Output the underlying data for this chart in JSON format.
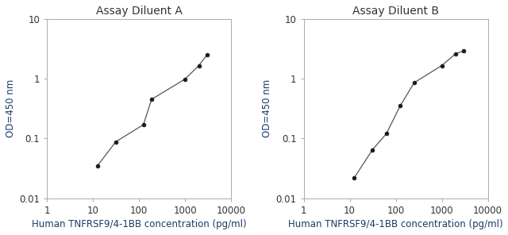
{
  "plot_A": {
    "title": "Assay Diluent A",
    "x": [
      12.5,
      31.25,
      125,
      187.5,
      1000,
      2000,
      3000
    ],
    "y": [
      0.035,
      0.088,
      0.17,
      0.45,
      0.98,
      1.65,
      2.5
    ],
    "xlabel": "Human TNFRSF9/4-1BB concentration (pg/ml)",
    "ylabel": "OD=450 nm",
    "xlim": [
      1,
      10000
    ],
    "ylim": [
      0.01,
      10
    ],
    "xticks": [
      1,
      10,
      100,
      1000,
      10000
    ],
    "yticks": [
      0.01,
      0.1,
      1,
      10
    ],
    "xtick_labels": [
      "1",
      "10",
      "100",
      "1000",
      "10000"
    ],
    "ytick_labels": [
      "0.01",
      "0.1",
      "1",
      "10"
    ]
  },
  "plot_B": {
    "title": "Assay Diluent B",
    "x": [
      12.5,
      31.25,
      62.5,
      125,
      250,
      1000,
      2000,
      3000
    ],
    "y": [
      0.022,
      0.065,
      0.12,
      0.35,
      0.85,
      1.65,
      2.6,
      2.9
    ],
    "xlabel": "Human TNFRSF9/4-1BB concentration (pg/ml)",
    "ylabel": "OD=450 nm",
    "xlim": [
      1,
      10000
    ],
    "ylim": [
      0.01,
      10
    ],
    "xticks": [
      1,
      10,
      100,
      1000,
      10000
    ],
    "yticks": [
      0.01,
      0.1,
      1,
      10
    ],
    "xtick_labels": [
      "1",
      "10",
      "100",
      "1000",
      "10000"
    ],
    "ytick_labels": [
      "0.01",
      "0.1",
      "1",
      "10"
    ]
  },
  "line_color": "#555555",
  "marker_color": "#1a1a1a",
  "title_color": "#333333",
  "xlabel_color": "#1a3a6b",
  "ylabel_color": "#1a3a6b",
  "background_color": "#ffffff",
  "title_fontsize": 10,
  "label_fontsize": 8.5,
  "tick_fontsize": 8.5
}
